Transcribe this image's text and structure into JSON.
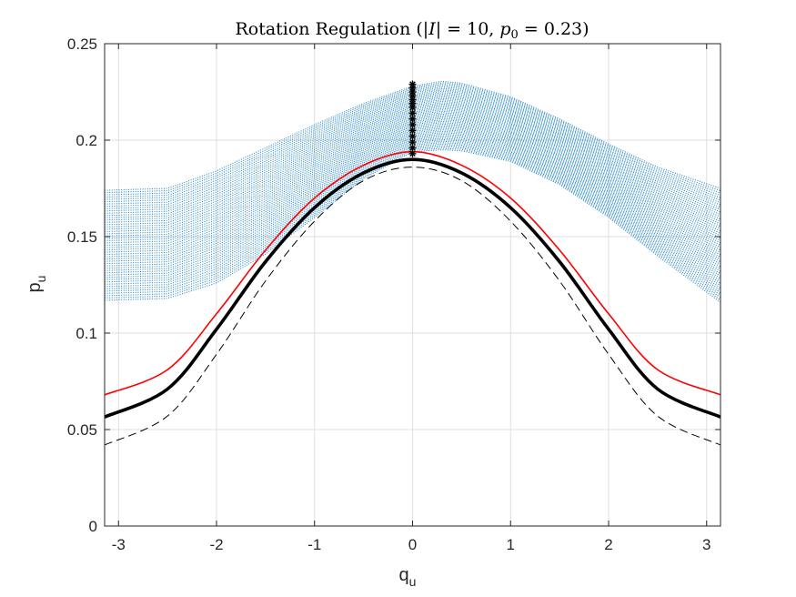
{
  "chart_data": {
    "type": "line",
    "title": {
      "prefix": "Rotation Regulation (",
      "abs_open": "|",
      "abs_var": "I",
      "abs_close": "|",
      "eq1": " = 10, ",
      "p_var": "p",
      "p_sub": "0",
      "eq2": " = 0.23)"
    },
    "xlabel": {
      "main": "q",
      "sub": "u"
    },
    "ylabel": {
      "main": "p",
      "sub": "u"
    },
    "xlim": [
      -3.1416,
      3.1416
    ],
    "ylim": [
      0,
      0.25
    ],
    "xticks": [
      -3,
      -2,
      -1,
      0,
      1,
      2,
      3
    ],
    "xtick_labels": [
      "-3",
      "-2",
      "-1",
      "0",
      "1",
      "2",
      "3"
    ],
    "yticks": [
      0,
      0.05,
      0.1,
      0.15,
      0.2,
      0.25
    ],
    "ytick_labels": [
      "0",
      "0.05",
      "0.1",
      "0.15",
      "0.2",
      "0.25"
    ],
    "grid": true,
    "series": [
      {
        "name": "trajectory band",
        "style": "dots",
        "color": "#0072BD",
        "x": [
          -3.1416,
          -2.5,
          -2.0,
          -1.5,
          -1.0,
          -0.5,
          0.0,
          0.3,
          0.5,
          1.0,
          1.5,
          2.0,
          2.5,
          3.1416
        ],
        "upper": [
          0.174,
          0.175,
          0.184,
          0.196,
          0.208,
          0.219,
          0.228,
          0.2305,
          0.2295,
          0.2225,
          0.211,
          0.198,
          0.186,
          0.175
        ],
        "lower": [
          0.117,
          0.118,
          0.126,
          0.141,
          0.16,
          0.18,
          0.194,
          0.195,
          0.1945,
          0.189,
          0.177,
          0.16,
          0.14,
          0.116
        ]
      },
      {
        "name": "initial conditions",
        "style": "markers",
        "color": "#000000",
        "x": [
          0,
          0,
          0,
          0,
          0,
          0,
          0,
          0,
          0,
          0,
          0,
          0,
          0,
          0,
          0
        ],
        "y": [
          0.193,
          0.196,
          0.199,
          0.202,
          0.205,
          0.208,
          0.211,
          0.214,
          0.217,
          0.219,
          0.221,
          0.223,
          0.225,
          0.227,
          0.229
        ]
      },
      {
        "name": "red boundary",
        "style": "solid",
        "color": "#FF0000",
        "x": [
          -3.1416,
          -2.5,
          -2.0,
          -1.5,
          -1.0,
          -0.5,
          0.0,
          0.5,
          1.0,
          1.5,
          2.0,
          2.5,
          3.1416
        ],
        "y": [
          0.068,
          0.081,
          0.11,
          0.143,
          0.17,
          0.187,
          0.194,
          0.187,
          0.17,
          0.143,
          0.11,
          0.081,
          0.068
        ]
      },
      {
        "name": "black separatrix",
        "style": "solid-thick",
        "color": "#000000",
        "x": [
          -3.1416,
          -2.5,
          -2.0,
          -1.5,
          -1.0,
          -0.5,
          0.0,
          0.5,
          1.0,
          1.5,
          2.0,
          2.5,
          3.1416
        ],
        "y": [
          0.0565,
          0.071,
          0.102,
          0.137,
          0.165,
          0.183,
          0.19,
          0.183,
          0.165,
          0.137,
          0.102,
          0.071,
          0.0565
        ]
      },
      {
        "name": "dashed boundary",
        "style": "dashed",
        "color": "#000000",
        "x": [
          -3.1416,
          -2.5,
          -2.0,
          -1.5,
          -1.0,
          -0.5,
          0.0,
          0.5,
          1.0,
          1.5,
          2.0,
          2.5,
          3.1416
        ],
        "y": [
          0.042,
          0.057,
          0.089,
          0.127,
          0.158,
          0.179,
          0.186,
          0.179,
          0.158,
          0.127,
          0.089,
          0.057,
          0.042
        ]
      }
    ]
  }
}
